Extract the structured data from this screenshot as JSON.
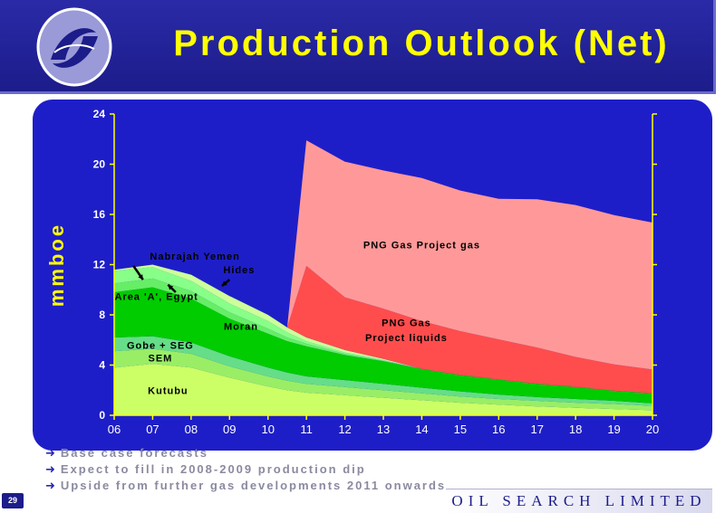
{
  "header": {
    "title": "Production Outlook (Net)",
    "logo_icon": "oil-search-swirl-logo"
  },
  "chart_data": {
    "type": "area",
    "stacked": true,
    "title": "",
    "xlabel": "",
    "ylabel": "mmboe",
    "x": [
      6,
      7,
      8,
      9,
      10,
      10.5,
      11,
      12,
      13,
      14,
      15,
      16,
      17,
      18,
      19,
      20
    ],
    "x_tick_labels": [
      "06",
      "07",
      "08",
      "09",
      "10",
      "11",
      "12",
      "13",
      "14",
      "15",
      "16",
      "17",
      "18",
      "19",
      "20"
    ],
    "ylim": [
      0,
      24
    ],
    "y_ticks": [
      0,
      4,
      8,
      12,
      16,
      20,
      24
    ],
    "grid": false,
    "series": [
      {
        "name": "Kutubu",
        "color": "#ccff66",
        "values": [
          3.8,
          4.1,
          3.8,
          3.0,
          2.3,
          2.0,
          1.8,
          1.6,
          1.4,
          1.2,
          1.0,
          0.85,
          0.7,
          0.6,
          0.5,
          0.4
        ]
      },
      {
        "name": "SEM",
        "color": "#99ee66",
        "values": [
          1.3,
          1.2,
          1.1,
          0.9,
          0.8,
          0.75,
          0.7,
          0.65,
          0.6,
          0.55,
          0.5,
          0.45,
          0.45,
          0.4,
          0.4,
          0.35
        ]
      },
      {
        "name": "Gobe + SEG",
        "color": "#66dd88",
        "values": [
          1.1,
          1.0,
          0.9,
          0.8,
          0.7,
          0.65,
          0.6,
          0.55,
          0.5,
          0.45,
          0.4,
          0.35,
          0.3,
          0.3,
          0.25,
          0.2
        ]
      },
      {
        "name": "Moran",
        "color": "#00cc00",
        "values": [
          3.6,
          3.9,
          3.5,
          3.0,
          2.7,
          2.5,
          2.4,
          2.0,
          1.8,
          1.5,
          1.3,
          1.2,
          1.05,
          0.95,
          0.8,
          0.8
        ]
      },
      {
        "name": "Area 'A', Egypt",
        "color": "#66ee66",
        "values": [
          0.7,
          0.7,
          0.6,
          0.5,
          0.4,
          0.3,
          0.2,
          0.1,
          0.05,
          0,
          0,
          0,
          0,
          0,
          0,
          0
        ]
      },
      {
        "name": "Nabrajah Yemen",
        "color": "#88ff88",
        "values": [
          1.0,
          0.9,
          0.8,
          0.7,
          0.6,
          0.4,
          0.2,
          0.1,
          0.05,
          0,
          0,
          0,
          0,
          0,
          0,
          0
        ]
      },
      {
        "name": "Hides",
        "color": "#ccff99",
        "values": [
          0.1,
          0.2,
          0.5,
          0.6,
          0.5,
          0.4,
          0.3,
          0.2,
          0.1,
          0,
          0,
          0,
          0,
          0,
          0,
          0
        ]
      },
      {
        "name": "PNG Gas Project liquids",
        "color": "#ff4d4d",
        "values": [
          0,
          0,
          0,
          0,
          0,
          0,
          5.7,
          4.2,
          4.0,
          3.8,
          3.5,
          3.2,
          2.9,
          2.4,
          2.1,
          1.9
        ]
      },
      {
        "name": "PNG Gas Project gas",
        "color": "#ff9999",
        "values": [
          0,
          0,
          0,
          0,
          0,
          0,
          10.0,
          10.8,
          11.0,
          11.4,
          11.2,
          11.2,
          11.8,
          12.1,
          11.9,
          11.7
        ]
      }
    ],
    "labels": [
      {
        "text": "Nabrajah Yemen",
        "x": 8.1,
        "y": 12.4
      },
      {
        "text": "Hides",
        "x": 9.25,
        "y": 11.3
      },
      {
        "text": "Area 'A', Egypt",
        "x": 7.1,
        "y": 9.2
      },
      {
        "text": "Moran",
        "x": 9.3,
        "y": 6.8
      },
      {
        "text": "Gobe + SEG",
        "x": 7.2,
        "y": 5.3
      },
      {
        "text": "SEM",
        "x": 7.2,
        "y": 4.3
      },
      {
        "text": "Kutubu",
        "x": 7.4,
        "y": 1.7
      },
      {
        "text": "PNG Gas Project gas",
        "x": 14.0,
        "y": 13.3
      },
      {
        "text": "PNG Gas",
        "x": 13.6,
        "y": 7.1
      },
      {
        "text": "Project liquids",
        "x": 13.6,
        "y": 5.9
      }
    ]
  },
  "bullets": [
    "Base case forecasts",
    "Expect to fill in 2008-2009 production dip",
    "Upside from further gas developments 2011 onwards"
  ],
  "footer": {
    "page_number": "29",
    "company": "OIL SEARCH LIMITED"
  },
  "colors": {
    "header_bg": "#1c1c8a",
    "title": "#ffff00",
    "panel_bg": "#1e1ec8",
    "axis": "#ffff00"
  }
}
